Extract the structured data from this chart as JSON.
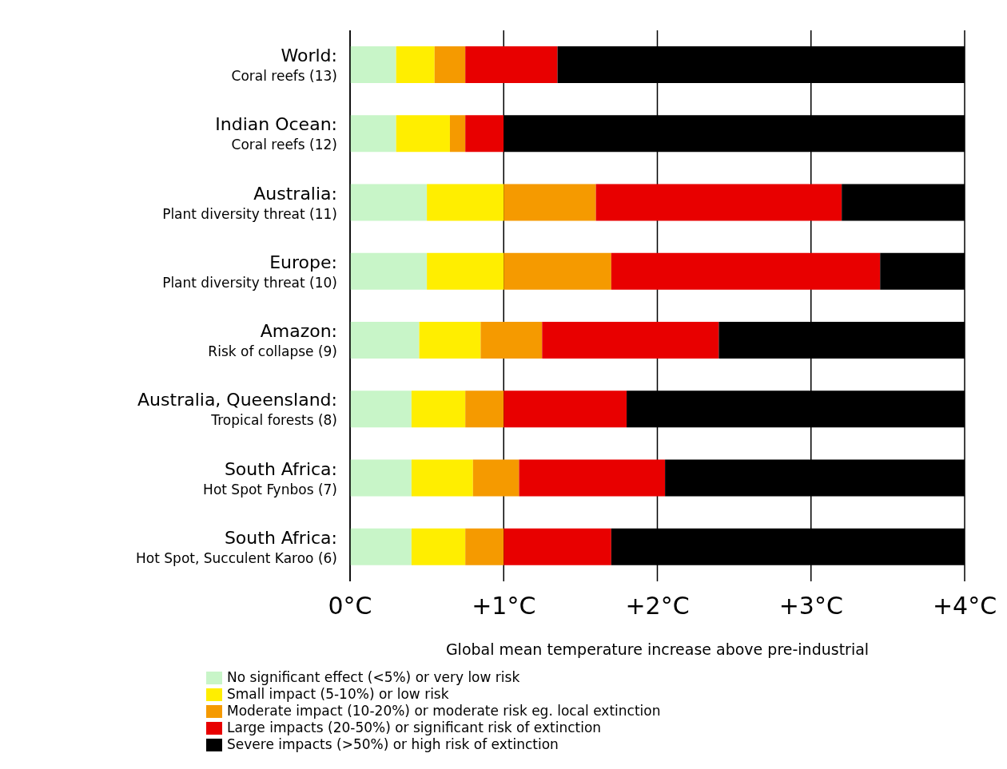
{
  "chart_data": {
    "type": "bar",
    "orientation": "horizontal",
    "stacked": true,
    "xlabel": "Global mean temperature increase above pre-industrial",
    "categories": [
      "World:\nCoral reefs (13)",
      "Indian Ocean:\nCoral reefs (12)",
      "Australia:\nPlant diversity threat (11)",
      "Europe:\nPlant diversity threat (10)",
      "Amazon:\nRisk of collapse (9)",
      "Australia, Queensland:\nTropical forests (8)",
      "South Africa:\nHot Spot Fynbos  (7)",
      "South Africa:\nHot Spot, Succulent Karoo (6)"
    ],
    "series": [
      {
        "name": "No significant effect (<5%) or very low risk",
        "color": "#c8f5c8",
        "values": [
          0.3,
          0.3,
          0.5,
          0.5,
          0.45,
          0.4,
          0.4,
          0.4
        ]
      },
      {
        "name": "Small impact (5-10%) or low risk",
        "color": "#ffee00",
        "values": [
          0.25,
          0.35,
          0.5,
          0.5,
          0.4,
          0.35,
          0.4,
          0.35
        ]
      },
      {
        "name": "Moderate impact (10-20%) or moderate risk eg. local extinction",
        "color": "#f59a00",
        "values": [
          0.2,
          0.1,
          0.6,
          0.7,
          0.4,
          0.25,
          0.3,
          0.25
        ]
      },
      {
        "name": "Large impacts (20-50%) or significant risk of extinction",
        "color": "#e80000",
        "values": [
          0.6,
          0.25,
          1.6,
          1.75,
          1.15,
          0.8,
          0.95,
          0.7
        ]
      },
      {
        "name": "Severe impacts (>50%) or high risk of extinction",
        "color": "#000000",
        "values": [
          2.65,
          3.0,
          0.8,
          0.55,
          1.6,
          2.2,
          1.95,
          2.3
        ]
      }
    ],
    "xlim": [
      0,
      4
    ],
    "xticks": [
      {
        "value": 0,
        "label": "0°C"
      },
      {
        "value": 1,
        "label": "+1°C"
      },
      {
        "value": 2,
        "label": "+2°C"
      },
      {
        "value": 3,
        "label": "+3°C"
      },
      {
        "value": 4,
        "label": "+4°C"
      }
    ],
    "grid": "x",
    "legend": "bottom left"
  }
}
